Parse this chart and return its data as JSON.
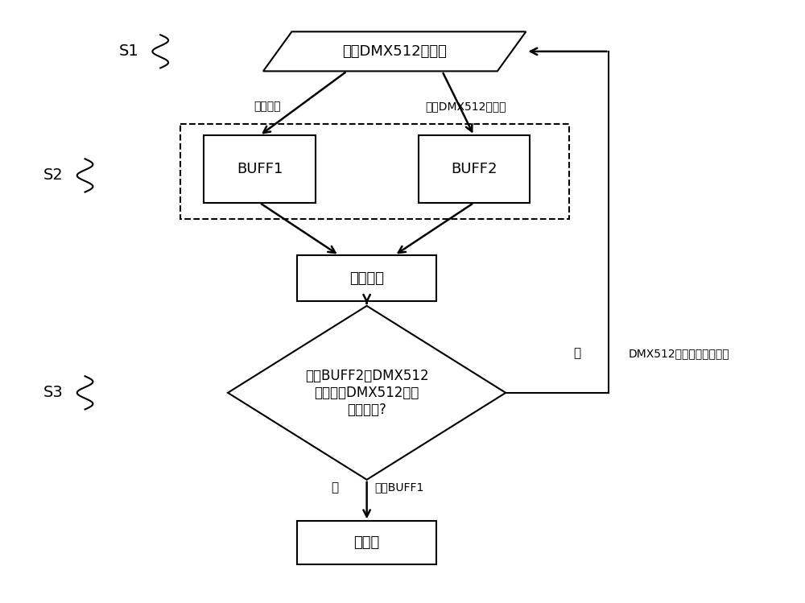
{
  "bg_color": "#ffffff",
  "recv_text": "接收DMX512数据包",
  "buff1_text": "BUFF1",
  "buff2_text": "BUFF2",
  "compare_text": "对比处理",
  "diamond_text": "对比BUFF2的DMX512\n数据包和DMX512协议\n是否一致?",
  "stage_text": "舞台灯",
  "channel_label": "通道数据",
  "fullframe_label": "整帧DMX512数据包",
  "no_label": "否",
  "dmx_recv_label": "DMX512接口重新接收数据",
  "yes_label": "是",
  "output_label": "输出BUFF1",
  "s1_label": "S1",
  "s2_label": "S2",
  "s3_label": "S3",
  "line_color": "#000000",
  "font_size_main": 13,
  "font_size_small": 10,
  "font_size_s": 14
}
